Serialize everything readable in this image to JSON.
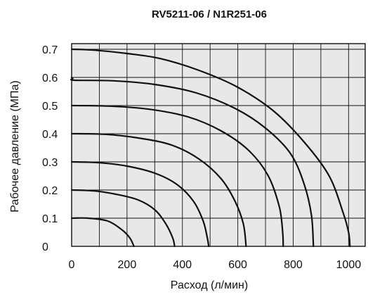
{
  "chart_data": {
    "type": "line",
    "title": "RV5211-06 / N1R251-06",
    "xlabel": "Расход (л/мин)",
    "ylabel": "Рабочее давление (МПа)",
    "xlim": [
      0,
      1060
    ],
    "ylim": [
      0,
      0.72
    ],
    "xticks": [
      0,
      200,
      400,
      600,
      800,
      1000
    ],
    "xtick_labels": [
      "0",
      "200",
      "400",
      "600",
      "800",
      "1000"
    ],
    "yticks": [
      0,
      0.1,
      0.2,
      0.3,
      0.4,
      0.5,
      0.6,
      0.7
    ],
    "ytick_labels": [
      "0",
      "0.1",
      "0.2",
      "0.3",
      "0.4",
      "0.5",
      "0.6",
      "0.7"
    ],
    "grid": true,
    "x_gridlines": [
      0,
      100,
      200,
      300,
      400,
      500,
      600,
      700,
      800,
      900,
      1000
    ],
    "plot_background": "#e8e8e8",
    "line_color": "#111111",
    "series": [
      {
        "points": [
          [
            0,
            0.1
          ],
          [
            60,
            0.1
          ],
          [
            130,
            0.09
          ],
          [
            180,
            0.06
          ],
          [
            210,
            0.03
          ],
          [
            225,
            0.0
          ]
        ]
      },
      {
        "points": [
          [
            0,
            0.2
          ],
          [
            80,
            0.197
          ],
          [
            160,
            0.185
          ],
          [
            240,
            0.165
          ],
          [
            300,
            0.13
          ],
          [
            340,
            0.08
          ],
          [
            365,
            0.03
          ],
          [
            372,
            0.0
          ]
        ]
      },
      {
        "points": [
          [
            0,
            0.3
          ],
          [
            100,
            0.297
          ],
          [
            200,
            0.285
          ],
          [
            300,
            0.26
          ],
          [
            380,
            0.22
          ],
          [
            440,
            0.16
          ],
          [
            475,
            0.09
          ],
          [
            490,
            0.03
          ],
          [
            495,
            0.0
          ]
        ]
      },
      {
        "points": [
          [
            0,
            0.4
          ],
          [
            120,
            0.398
          ],
          [
            240,
            0.385
          ],
          [
            360,
            0.36
          ],
          [
            460,
            0.31
          ],
          [
            540,
            0.24
          ],
          [
            590,
            0.16
          ],
          [
            620,
            0.08
          ],
          [
            630,
            0.0
          ]
        ]
      },
      {
        "points": [
          [
            0,
            0.5
          ],
          [
            140,
            0.498
          ],
          [
            280,
            0.487
          ],
          [
            420,
            0.46
          ],
          [
            540,
            0.41
          ],
          [
            640,
            0.34
          ],
          [
            710,
            0.25
          ],
          [
            750,
            0.14
          ],
          [
            762,
            0.05
          ],
          [
            764,
            0.0
          ]
        ]
      },
      {
        "points": [
          [
            0,
            0.6
          ],
          [
            4,
            0.596
          ],
          [
            10,
            0.59
          ],
          [
            150,
            0.588
          ],
          [
            300,
            0.575
          ],
          [
            450,
            0.545
          ],
          [
            590,
            0.49
          ],
          [
            700,
            0.42
          ],
          [
            790,
            0.33
          ],
          [
            840,
            0.22
          ],
          [
            866,
            0.11
          ],
          [
            873,
            0.0
          ]
        ]
      },
      {
        "points": [
          [
            0,
            0.7
          ],
          [
            80,
            0.697
          ],
          [
            200,
            0.685
          ],
          [
            320,
            0.667
          ],
          [
            460,
            0.625
          ],
          [
            600,
            0.565
          ],
          [
            730,
            0.48
          ],
          [
            840,
            0.37
          ],
          [
            930,
            0.25
          ],
          [
            980,
            0.12
          ],
          [
            1000,
            0.05
          ],
          [
            1005,
            0.0
          ]
        ]
      }
    ]
  }
}
